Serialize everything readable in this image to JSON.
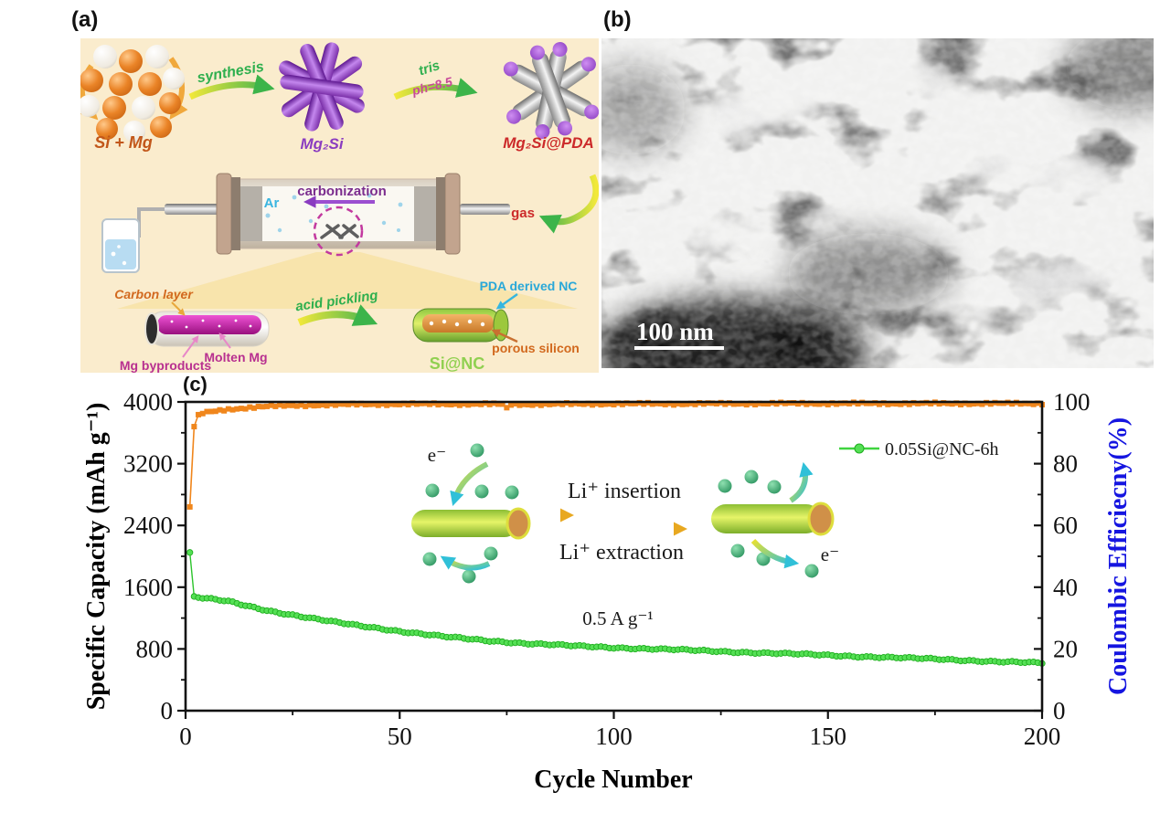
{
  "figure": {
    "panel_a_label": "(a)",
    "panel_b_label": "(b)",
    "panel_c_label": "(c)"
  },
  "panel_a": {
    "reactants_label": "Si + Mg",
    "step1_arrow": "synthesis",
    "product1_label": "Mg₂Si",
    "step2_line1": "tris",
    "step2_line2": "ph=8.5",
    "product2_label": "Mg₂Si@PDA",
    "furnace": {
      "atmosphere": "Ar",
      "process": "carbonization",
      "outlet": "gas"
    },
    "intermediate": {
      "coating": "Carbon layer",
      "byproducts": "Mg byproducts",
      "core": "Molten Mg"
    },
    "step3_arrow": "acid pickling",
    "final": {
      "shell": "PDA derived NC",
      "core": "porous silicon",
      "name": "Si@NC"
    }
  },
  "panel_b": {
    "scale_bar": "100 nm"
  },
  "chart_data": {
    "type": "line",
    "xlabel": "Cycle Number",
    "ylabel_left": "Specific Capacity (mAh g⁻¹)",
    "ylabel_right": "Coulombic Efficiecny(%)",
    "xlim": [
      0,
      200
    ],
    "ylim_left": [
      0,
      4000
    ],
    "ylim_right": [
      0,
      100
    ],
    "x_ticks": [
      0,
      50,
      100,
      150,
      200
    ],
    "y_ticks_left": [
      0,
      800,
      1600,
      2400,
      3200,
      4000
    ],
    "y_ticks_right": [
      0,
      20,
      40,
      60,
      80,
      100
    ],
    "grid": false,
    "legend": {
      "label": "0.05Si@NC-6h",
      "color": "#3fd43f",
      "position": "upper-right"
    },
    "annotations": {
      "insertion": "Li⁺ insertion",
      "extraction": "Li⁺ extraction",
      "current_density": "0.5 A g⁻¹",
      "electron_left": "e⁻",
      "electron_right": "e⁻"
    },
    "series": [
      {
        "name": "0.05Si@NC-6h",
        "axis": "left",
        "units": "mAh g⁻¹",
        "color": "#3fd43f",
        "marker": "circle",
        "x": [
          1,
          2,
          3,
          5,
          8,
          10,
          15,
          20,
          25,
          30,
          35,
          40,
          45,
          50,
          55,
          60,
          70,
          80,
          90,
          100,
          110,
          120,
          130,
          140,
          150,
          160,
          170,
          180,
          190,
          200
        ],
        "y": [
          2050,
          1480,
          1465,
          1450,
          1430,
          1415,
          1350,
          1290,
          1240,
          1190,
          1145,
          1105,
          1070,
          1030,
          995,
          960,
          910,
          870,
          840,
          818,
          798,
          778,
          758,
          738,
          718,
          698,
          678,
          658,
          636,
          615
        ]
      },
      {
        "name": "Coulombic Efficiency",
        "axis": "right",
        "units": "%",
        "color": "#f0861c",
        "marker": "square",
        "x": [
          1,
          2,
          3,
          4,
          5,
          8,
          10,
          15,
          20,
          30,
          40,
          50,
          60,
          70,
          74,
          75,
          76,
          90,
          100,
          120,
          140,
          160,
          180,
          200
        ],
        "y": [
          66,
          92,
          95.5,
          96.3,
          96.6,
          97.2,
          97.6,
          98.2,
          98.6,
          99.0,
          99.2,
          99.3,
          99.3,
          99.3,
          99.2,
          97.9,
          99.2,
          99.3,
          99.4,
          99.4,
          99.5,
          99.5,
          99.5,
          99.5
        ]
      }
    ]
  }
}
